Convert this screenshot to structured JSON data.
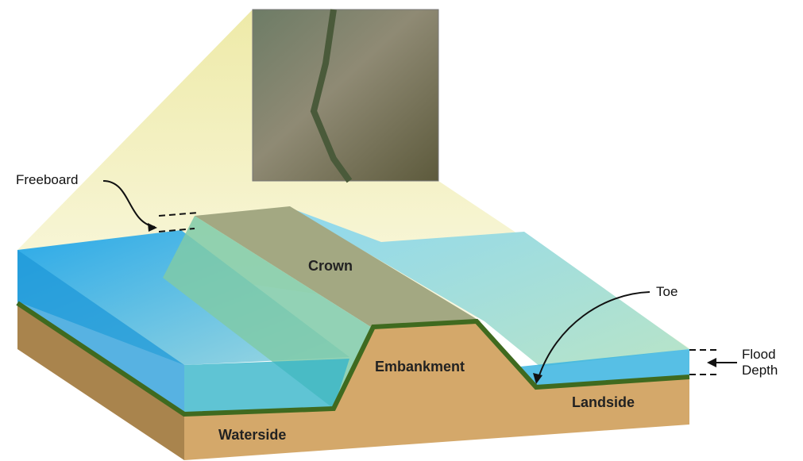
{
  "labels": {
    "freeboard": "Freeboard",
    "crown": "Crown",
    "toe": "Toe",
    "embankment": "Embankment",
    "landside": "Landside",
    "waterside": "Waterside",
    "flood_depth": "Flood Depth"
  }
}
